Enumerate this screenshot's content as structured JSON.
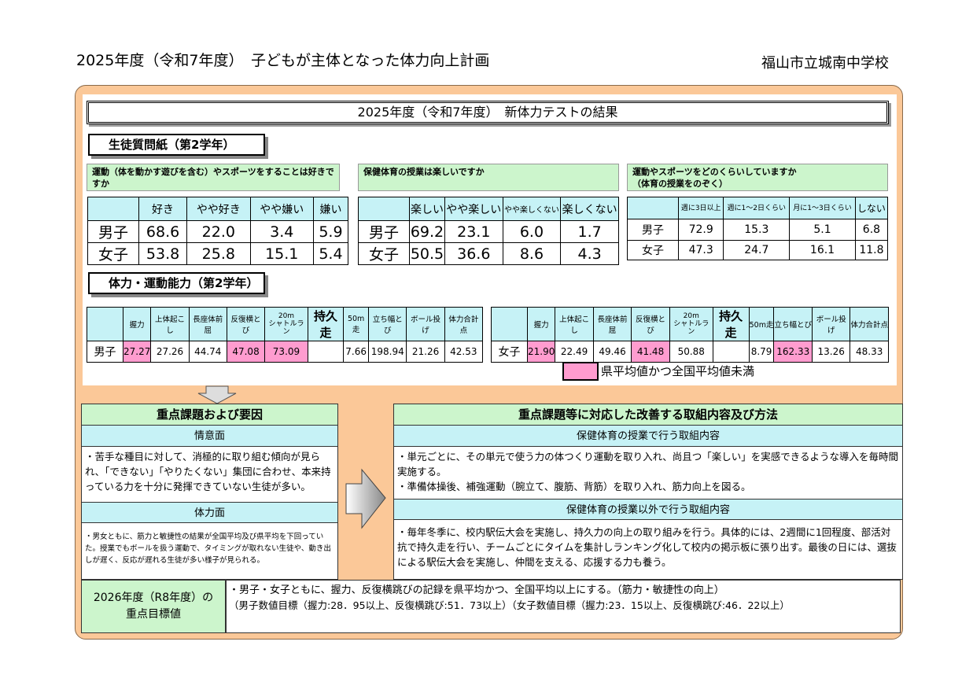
{
  "header": {
    "title": "2025年度（令和7年度）　子どもが主体となった体力向上計画",
    "school": "福山市立城南中学校"
  },
  "results_title": "2025年度（令和7年度）　新体力テストの結果",
  "questionnaire": {
    "section": "生徒質問紙（第2学年）",
    "q1": {
      "title": "運動（体を動かす遊びを含む）やスポーツをすることは好きですか",
      "cols": [
        "好き",
        "やや好き",
        "やや嫌い",
        "嫌い"
      ],
      "rows": [
        {
          "label": "男子",
          "values": [
            "68.6",
            "22.0",
            "3.4",
            "5.9"
          ]
        },
        {
          "label": "女子",
          "values": [
            "53.8",
            "25.8",
            "15.1",
            "5.4"
          ]
        }
      ]
    },
    "q2": {
      "title": "保健体育の授業は楽しいですか",
      "cols": [
        "楽しい",
        "やや楽しい",
        "やや楽しくない",
        "楽しくない"
      ],
      "rows": [
        {
          "label": "男子",
          "values": [
            "69.2",
            "23.1",
            "6.0",
            "1.7"
          ]
        },
        {
          "label": "女子",
          "values": [
            "50.5",
            "36.6",
            "8.6",
            "4.3"
          ]
        }
      ]
    },
    "q3": {
      "title": "運動やスポーツをどのくらいしていますか",
      "subtitle": "（体育の授業をのぞく）",
      "cols": [
        "週に3日以上",
        "週に1～2日くらい",
        "月に1～3日くらい",
        "しない"
      ],
      "rows": [
        {
          "label": "男子",
          "values": [
            "72.9",
            "15.3",
            "5.1",
            "6.8"
          ]
        },
        {
          "label": "女子",
          "values": [
            "47.3",
            "24.7",
            "16.1",
            "11.8"
          ]
        }
      ]
    }
  },
  "fitness": {
    "section": "体力・運動能力（第2学年）",
    "cols": [
      "握力",
      "上体起こし",
      "長座体前屈",
      "反復横とび",
      "20m",
      "シャトルラン",
      "持久走",
      "50m走",
      "立ち幅とび",
      "ボール投げ",
      "体力合計点"
    ],
    "boys": {
      "label": "男子",
      "values": [
        "27.27",
        "27.26",
        "44.74",
        "47.08",
        "73.09",
        "",
        "7.66",
        "198.94",
        "21.26",
        "42.53"
      ],
      "below": [
        true,
        false,
        false,
        true,
        true,
        false,
        false,
        false,
        false,
        false
      ]
    },
    "girls": {
      "label": "女子",
      "values": [
        "21.90",
        "22.49",
        "49.46",
        "41.48",
        "50.88",
        "",
        "8.79",
        "162.33",
        "13.26",
        "48.33"
      ],
      "below": [
        true,
        false,
        false,
        true,
        false,
        false,
        false,
        true,
        false,
        false
      ]
    },
    "legend": "県平均値かつ全国平均値未満",
    "highlight_color": "#ff9ccf"
  },
  "issues": {
    "title": "重点課題および要因",
    "mental_title": "情意面",
    "mental_text": "・苦手な種目に対して、消極的に取り組む傾向が見られ、「できない」「やりたくない」集団に合わせ、本来持っている力を十分に発揮できていない生徒が多い。",
    "physical_title": "体力面",
    "physical_text": "・男女ともに、筋力と敏捷性の結果が全国平均及び県平均を下回っていた。授業でもボールを扱う運動で、タイミングが取れない生徒や、動き出しが遅く、反応が遅れる生徒が多い様子が見られる。"
  },
  "actions": {
    "title": "重点課題等に対応した改善する取組内容及び方法",
    "class_title": "保健体育の授業で行う取組内容",
    "class_text": [
      "・単元ごとに、その単元で使う力の体つくり運動を取り入れ、尚且つ「楽しい」を実感できるような導入を毎時間実施する。",
      "・準備体操後、補強運動（腕立て、腹筋、背筋）を取り入れ、筋力向上を図る。"
    ],
    "other_title": "保健体育の授業以外で行う取組内容",
    "other_text": "・毎年冬季に、校内駅伝大会を実施し、持久力の向上の取り組みを行う。具体的には、2週間に1回程度、部活対抗で持久走を行い、チームごとにタイムを集計しランキング化して校内の掲示板に張り出す。最後の日には、選抜による駅伝大会を実施し、仲間を支える、応援する力も養う。"
  },
  "goals": {
    "label_line1": "2026年度（R8年度）の",
    "label_line2": "重点目標値",
    "line1": "・男子・女子ともに、握力、反復横跳びの記録を県平均かつ、全国平均以上にする。（筋力・敏捷性の向上）",
    "line2": "（男子数値目標（握力:28．95以上、反復横跳び:51．73以上）（女子数値目標（握力:23．15以上、反復横跳び:46．22以上）"
  }
}
